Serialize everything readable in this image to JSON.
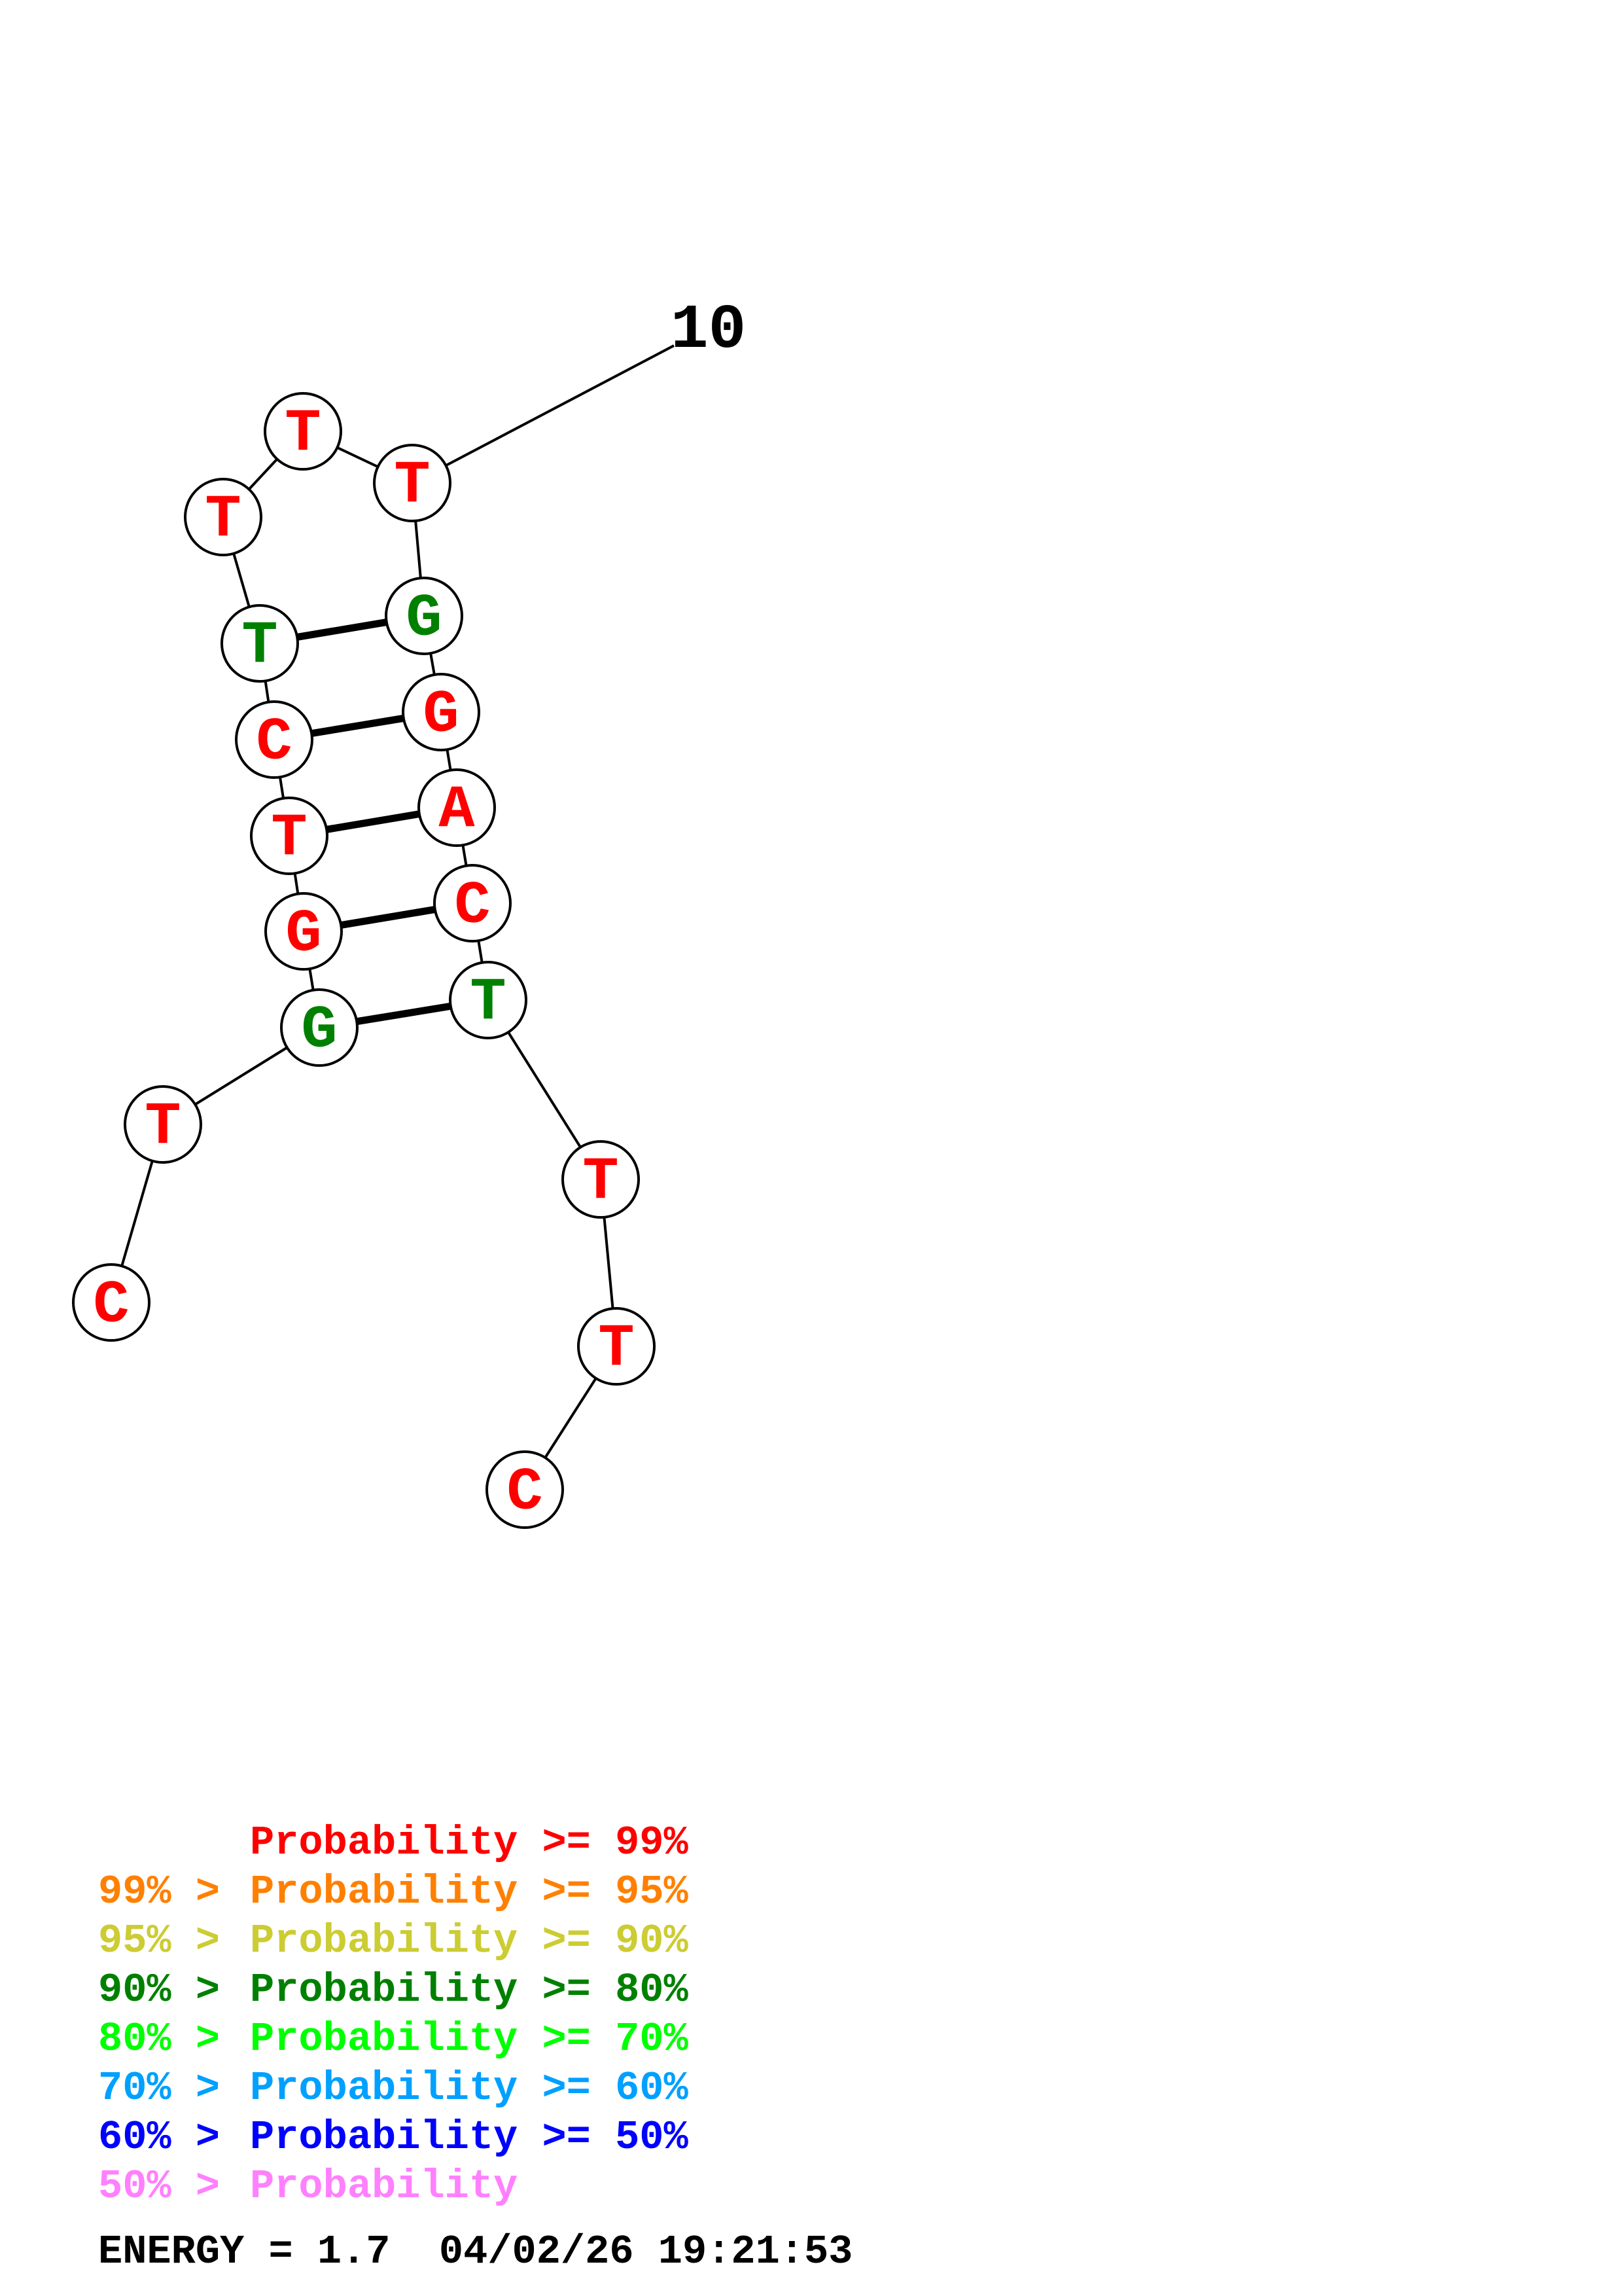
{
  "nucleotides": [
    {
      "base": "C",
      "color": "#ff0000"
    },
    {
      "base": "T",
      "color": "#ff0000"
    },
    {
      "base": "G",
      "color": "#008000"
    },
    {
      "base": "G",
      "color": "#ff0000"
    },
    {
      "base": "T",
      "color": "#ff0000"
    },
    {
      "base": "C",
      "color": "#ff0000"
    },
    {
      "base": "T",
      "color": "#008000"
    },
    {
      "base": "T",
      "color": "#ff0000"
    },
    {
      "base": "T",
      "color": "#ff0000"
    },
    {
      "base": "T",
      "color": "#ff0000"
    },
    {
      "base": "G",
      "color": "#008000"
    },
    {
      "base": "G",
      "color": "#ff0000"
    },
    {
      "base": "A",
      "color": "#ff0000"
    },
    {
      "base": "C",
      "color": "#ff0000"
    },
    {
      "base": "T",
      "color": "#008000"
    },
    {
      "base": "T",
      "color": "#ff0000"
    },
    {
      "base": "T",
      "color": "#ff0000"
    },
    {
      "base": "C",
      "color": "#ff0000"
    }
  ],
  "base_pairs": [
    [
      3,
      15
    ],
    [
      4,
      14
    ],
    [
      5,
      13
    ],
    [
      6,
      12
    ],
    [
      7,
      11
    ]
  ],
  "position_label": {
    "text": "10",
    "index": 10
  },
  "legend": [
    {
      "prefix": "    ",
      "text": "Probability >= 99%",
      "color": "#ff0000"
    },
    {
      "prefix": "99% > ",
      "text": "Probability >= 95%",
      "color": "#ff8000"
    },
    {
      "prefix": "95% > ",
      "text": "Probability >= 90%",
      "color": "#cccc33"
    },
    {
      "prefix": "90% > ",
      "text": "Probability >= 80%",
      "color": "#008000"
    },
    {
      "prefix": "80% > ",
      "text": "Probability >= 70%",
      "color": "#00ff00"
    },
    {
      "prefix": "70% > ",
      "text": "Probability >= 60%",
      "color": "#00a0ff"
    },
    {
      "prefix": "60% > ",
      "text": "Probability >= 50%",
      "color": "#0000ff"
    },
    {
      "prefix": "50% > ",
      "text": "Probability",
      "color": "#ff80ff"
    }
  ],
  "energy_text": "ENERGY = 1.7  04/02/26 19:21:53"
}
